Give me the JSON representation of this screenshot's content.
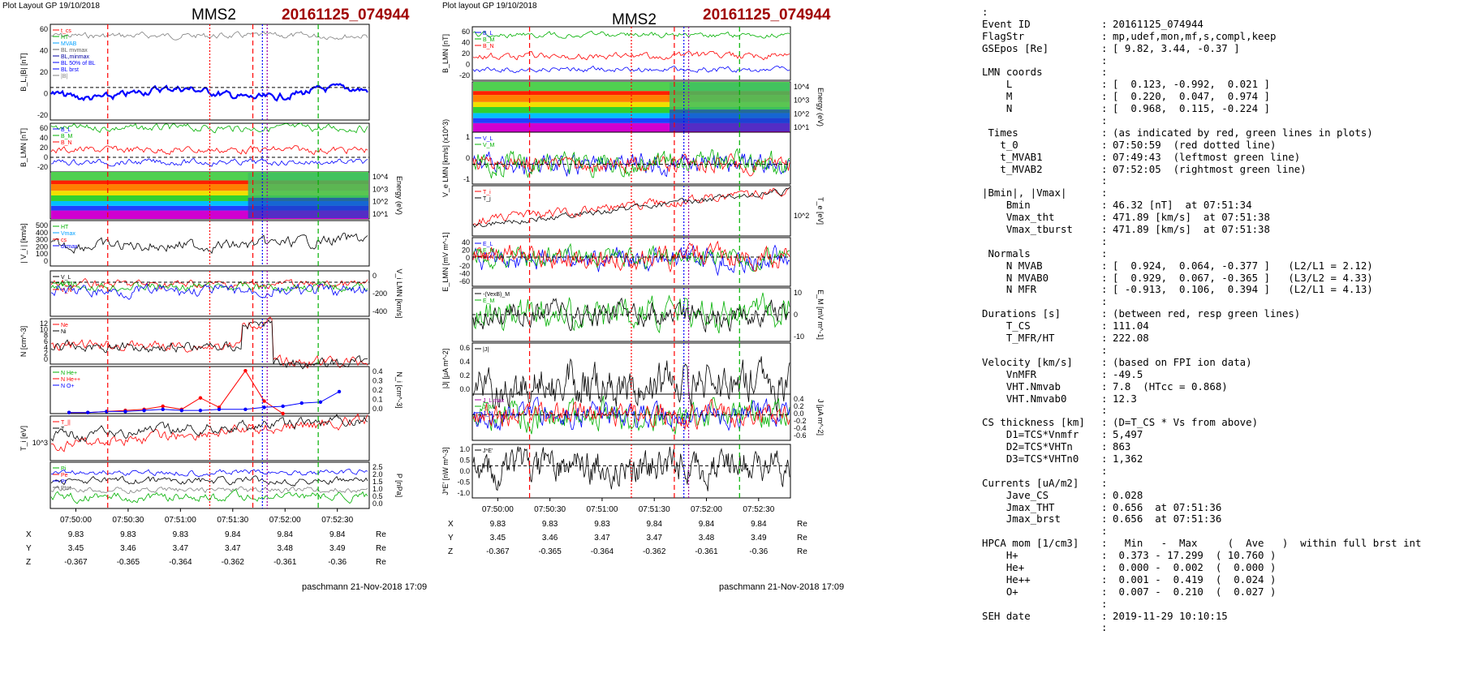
{
  "left_panel": {
    "header": "Plot Layout GP 19/10/2018",
    "spacecraft": "MMS2",
    "event_id": "20161125_074944",
    "footer": "paschmann 21-Nov-2018 17:09"
  },
  "right_panel": {
    "header": "Plot layout GP 19/10/2018",
    "spacecraft": "MMS2",
    "event_id": "20161125_074944",
    "footer": "paschmann 21-Nov-2018 17:09"
  },
  "position_table": {
    "rows": [
      "X",
      "Y",
      "Z"
    ],
    "unit": "Re",
    "X": [
      "9.83",
      "9.83",
      "9.83",
      "9.84",
      "9.84",
      "9.84"
    ],
    "Y": [
      "3.45",
      "3.46",
      "3.47",
      "3.47",
      "3.48",
      "3.49"
    ],
    "Z": [
      "-0.367",
      "-0.365",
      "-0.364",
      "-0.362",
      "-0.361",
      "-0.36"
    ]
  },
  "chart_data": [
    {
      "type": "line",
      "panel": "left",
      "ylabel": "B_L,|B| [nT]",
      "yticks": [
        "60",
        "40",
        "20",
        "0",
        "-20"
      ],
      "legend": [
        "t_cs",
        "HT",
        "MVAB",
        "BL mvmax",
        "BL,minmax",
        "BL 50% of BL",
        "BL brst",
        "|B|"
      ]
    },
    {
      "type": "line",
      "panel": "left",
      "ylabel": "B_LMN [nT]",
      "yticks": [
        "60",
        "40",
        "20",
        "0",
        "-20"
      ],
      "legend": [
        "B_L",
        "B_M",
        "B_N"
      ]
    },
    {
      "type": "heatmap",
      "panel": "left",
      "ylabel": "Energy (eV)",
      "yticks": [
        "10^4",
        "10^3",
        "10^2",
        "10^1"
      ]
    },
    {
      "type": "line",
      "panel": "left",
      "ylabel": "| V_i | [km/s]",
      "yticks": [
        "500",
        "400",
        "300",
        "200",
        "100",
        "0"
      ],
      "legend": [
        "HT",
        "Vmax",
        "cs",
        "dvmax"
      ]
    },
    {
      "type": "line",
      "panel": "left",
      "ylabel": "V_i LMN [km/s]",
      "yticks": [
        "0",
        "-200",
        "-400"
      ],
      "legend": [
        "V_L",
        "V_M",
        "V_N"
      ]
    },
    {
      "type": "line",
      "panel": "left",
      "ylabel": "N [cm^-3]",
      "yticks": [
        "12",
        "10",
        "8",
        "6",
        "4",
        "2",
        "0"
      ],
      "legend": [
        "Ne",
        "Ni"
      ]
    },
    {
      "type": "scatter",
      "panel": "left",
      "ylabel": "N_i [cm^-3]",
      "yticks": [
        "0.4",
        "0.3",
        "0.2",
        "0.1",
        "0.0"
      ],
      "legend": [
        "N He+",
        "N He++",
        "N O+"
      ],
      "series": [
        {
          "name": "N He++",
          "x": [
            "07:50:00",
            "07:50:10",
            "07:50:20",
            "07:50:30",
            "07:50:40",
            "07:50:50",
            "07:51:00",
            "07:51:10",
            "07:51:20",
            "07:51:34",
            "07:51:44",
            "07:51:54"
          ],
          "values": [
            0.01,
            0.01,
            0.02,
            0.03,
            0.04,
            0.07,
            0.04,
            0.15,
            0.06,
            0.41,
            0.12,
            0.0
          ]
        },
        {
          "name": "N O+",
          "x": [
            "07:50:00",
            "07:50:10",
            "07:50:20",
            "07:50:30",
            "07:50:40",
            "07:50:50",
            "07:51:00",
            "07:51:10",
            "07:51:20",
            "07:51:34",
            "07:51:44",
            "07:51:54",
            "07:52:04",
            "07:52:14",
            "07:52:24"
          ],
          "values": [
            0.01,
            0.01,
            0.02,
            0.02,
            0.03,
            0.04,
            0.03,
            0.03,
            0.04,
            0.04,
            0.06,
            0.07,
            0.1,
            0.11,
            0.21
          ]
        }
      ]
    },
    {
      "type": "line",
      "panel": "left",
      "ylabel": "T_i [eV]",
      "yticks": [
        "10^3"
      ],
      "legend": [
        "T_||",
        "T"
      ]
    },
    {
      "type": "line",
      "panel": "left",
      "ylabel": "P [nPa]",
      "yticks": [
        "2.5",
        "2.0",
        "1.5",
        "1.0",
        "0.5",
        "0.0"
      ],
      "legend": [
        "Pi",
        "Pe",
        "Pt",
        "Ptot"
      ]
    },
    {
      "type": "line",
      "panel": "right",
      "ylabel": "B_LMN [nT]",
      "yticks": [
        "60",
        "40",
        "20",
        "0",
        "-20"
      ],
      "legend": [
        "B_L",
        "B_M",
        "B_N"
      ]
    },
    {
      "type": "heatmap",
      "panel": "right",
      "ylabel": "Energy (eV)",
      "yticks": [
        "10^4",
        "10^3",
        "10^2",
        "10^1"
      ]
    },
    {
      "type": "line",
      "panel": "right",
      "ylabel": "V_e LMN [km/s] (x10^3)",
      "yticks": [
        "1",
        "0",
        "-1"
      ],
      "legend": [
        "V_L",
        "V_M"
      ]
    },
    {
      "type": "line",
      "panel": "right",
      "ylabel": "T_e [eV]",
      "yticks": [
        "10^2"
      ],
      "legend": [
        "T_i",
        "T_j"
      ]
    },
    {
      "type": "line",
      "panel": "right",
      "ylabel": "E_LMN [mV m^-1]",
      "yticks": [
        "40",
        "20",
        "0",
        "-20",
        "-40",
        "-60"
      ],
      "legend": [
        "E_L",
        "E_M",
        "E_N"
      ]
    },
    {
      "type": "line",
      "panel": "right",
      "ylabel": "E_M [mV m^-1]",
      "yticks": [
        "10",
        "0",
        "-10"
      ],
      "legend": [
        "-(VexB)_M",
        "E_M"
      ]
    },
    {
      "type": "line",
      "panel": "right",
      "ylabel": "|J| [μA m^-2]",
      "yticks": [
        "0.6",
        "0.4",
        "0.2",
        "0.0"
      ],
      "legend": [
        "|J|"
      ]
    },
    {
      "type": "line",
      "panel": "right",
      "ylabel": "J [μA m^-2]",
      "yticks": [
        "0.4",
        "0.2",
        "0.0",
        "-0.2",
        "-0.4",
        "-0.6"
      ],
      "legend": [
        "J_L max",
        "J_M",
        "J_N"
      ]
    },
    {
      "type": "line",
      "panel": "right",
      "ylabel": "J*E' [nW m^-3]",
      "yticks": [
        "1.0",
        "0.5",
        "0.0",
        "-0.5",
        "-1.0"
      ],
      "legend": [
        "J*E'"
      ]
    }
  ],
  "time_axis": {
    "ticks": [
      "07:50:00",
      "07:50:30",
      "07:51:00",
      "07:51:30",
      "07:52:00",
      "07:52:30"
    ]
  },
  "info": {
    "rows": [
      {
        "key": ":",
        "val": ""
      },
      {
        "key": "Event ID",
        "val": "20161125_074944"
      },
      {
        "key": "FlagStr",
        "val": "mp,udef,mon,mf,s,compl,keep"
      },
      {
        "key": "GSEpos [Re]",
        "val": "[ 9.82, 3.44, -0.37 ]"
      },
      {
        "key": "",
        "val": ""
      },
      {
        "key": "LMN coords",
        "val": ""
      },
      {
        "key": "    L",
        "val": "[  0.123, -0.992,  0.021 ]"
      },
      {
        "key": "    M",
        "val": "[  0.220,  0.047,  0.974 ]"
      },
      {
        "key": "    N",
        "val": "[  0.968,  0.115, -0.224 ]"
      },
      {
        "key": "",
        "val": ""
      },
      {
        "key": " Times",
        "val": "(as indicated by red, green lines in plots)"
      },
      {
        "key": "   t_0",
        "val": "07:50:59  (red dotted line)"
      },
      {
        "key": "   t_MVAB1",
        "val": "07:49:43  (leftmost green line)"
      },
      {
        "key": "   t_MVAB2",
        "val": "07:52:05  (rightmost green line)"
      },
      {
        "key": "",
        "val": ""
      },
      {
        "key": "|Bmin|, |Vmax|",
        "val": ""
      },
      {
        "key": "    Bmin",
        "val": "46.32 [nT]  at 07:51:34"
      },
      {
        "key": "    Vmax_tht",
        "val": "471.89 [km/s]  at 07:51:38"
      },
      {
        "key": "    Vmax_tburst",
        "val": "471.89 [km/s]  at 07:51:38"
      },
      {
        "key": "",
        "val": ""
      },
      {
        "key": " Normals",
        "val": ""
      },
      {
        "key": "    N MVAB",
        "val": "[  0.924,  0.064, -0.377 ]   (L2/L1 = 2.12)"
      },
      {
        "key": "    N MVAB0",
        "val": "[  0.929,  0.067, -0.365 ]   (L3/L2 = 4.33)"
      },
      {
        "key": "    N MFR",
        "val": "[ -0.913,  0.106,  0.394 ]   (L2/L1 = 4.13)"
      },
      {
        "key": "",
        "val": ""
      },
      {
        "key": "Durations [s]",
        "val": "(between red, resp green lines)"
      },
      {
        "key": "    T_CS",
        "val": "111.04"
      },
      {
        "key": "    T_MFR/HT",
        "val": "222.08"
      },
      {
        "key": "",
        "val": ""
      },
      {
        "key": "Velocity [km/s]",
        "val": "(based on FPI ion data)"
      },
      {
        "key": "    VnMFR",
        "val": "-49.5"
      },
      {
        "key": "    VHT.Nmvab",
        "val": "7.8  (HTcc = 0.868)"
      },
      {
        "key": "    VHT.Nmvab0",
        "val": "12.3"
      },
      {
        "key": "",
        "val": ""
      },
      {
        "key": "CS thickness [km]",
        "val": "(D=T_CS * Vs from above)"
      },
      {
        "key": "    D1=TCS*Vnmfr",
        "val": "5,497"
      },
      {
        "key": "    D2=TCS*VHTn",
        "val": "863"
      },
      {
        "key": "    D3=TCS*VHTn0",
        "val": "1,362"
      },
      {
        "key": "",
        "val": ""
      },
      {
        "key": "Currents [uA/m2]",
        "val": ""
      },
      {
        "key": "    Jave_CS",
        "val": "0.028"
      },
      {
        "key": "    Jmax_THT",
        "val": "0.656  at 07:51:36"
      },
      {
        "key": "    Jmax_brst",
        "val": "0.656  at 07:51:36"
      },
      {
        "key": "",
        "val": ""
      },
      {
        "key": "HPCA mom [1/cm3]",
        "val": "  Min   -  Max     (  Ave   )  within full brst int"
      },
      {
        "key": "    H+",
        "val": " 0.373 - 17.299  ( 10.760 )"
      },
      {
        "key": "    He+",
        "val": " 0.000 -  0.002  (  0.000 )"
      },
      {
        "key": "    He++",
        "val": " 0.001 -  0.419  (  0.024 )"
      },
      {
        "key": "    O+",
        "val": " 0.007 -  0.210  (  0.027 )"
      },
      {
        "key": "",
        "val": ""
      },
      {
        "key": "SEH date",
        "val": "2019-11-29 10:10:15"
      },
      {
        "key": "",
        "val": ""
      }
    ]
  },
  "colors": {
    "event_red": "#a00000",
    "red": "#ff0000",
    "green": "#00b000",
    "blue": "#0000ff",
    "black": "#000000",
    "grey": "#808080"
  }
}
